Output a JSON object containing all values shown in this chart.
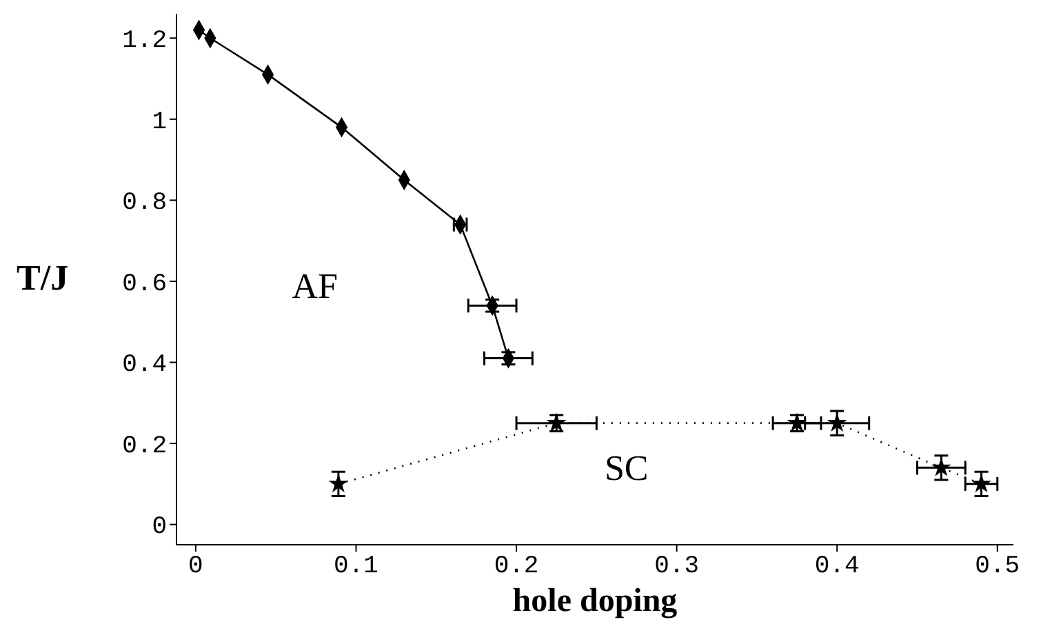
{
  "chart_data": {
    "type": "line",
    "xlabel": "hole doping",
    "ylabel": "T/J",
    "xlim": [
      -0.012,
      0.51
    ],
    "ylim": [
      -0.05,
      1.26
    ],
    "xticks": [
      0,
      0.1,
      0.2,
      0.3,
      0.4,
      0.5
    ],
    "yticks": [
      0,
      0.2,
      0.4,
      0.6,
      0.8,
      1,
      1.2
    ],
    "annotations": [
      "AF",
      "SC"
    ],
    "series": [
      {
        "color": "#000000",
        "marker": "diamond",
        "line_style": "solid",
        "x": [
          0.002,
          0.009,
          0.045,
          0.091,
          0.13,
          0.165,
          0.185,
          0.195
        ],
        "values": [
          1.22,
          1.2,
          1.11,
          0.98,
          0.85,
          0.74,
          0.54,
          0.41
        ],
        "errors": [
          null,
          null,
          null,
          null,
          null,
          null,
          0.015,
          0.015
        ],
        "xerrors": [
          null,
          null,
          null,
          null,
          null,
          0.004,
          0.015,
          0.015
        ]
      },
      {
        "color": "#000000",
        "marker": "star",
        "line_style": "dotted",
        "x": [
          0.089,
          0.225,
          0.375,
          0.4,
          0.465,
          0.49
        ],
        "values": [
          0.1,
          0.25,
          0.25,
          0.25,
          0.14,
          0.1
        ],
        "errors": [
          0.03,
          0.02,
          0.02,
          0.03,
          0.03,
          0.03
        ],
        "xerrors": [
          null,
          0.025,
          0.015,
          0.02,
          0.015,
          0.01
        ]
      }
    ]
  }
}
